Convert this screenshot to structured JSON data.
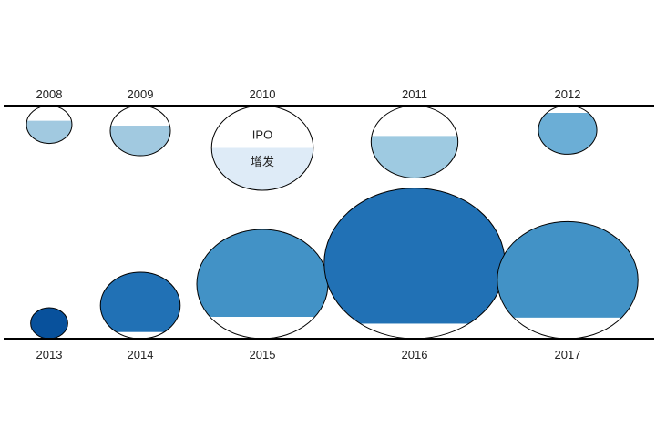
{
  "chart_data": {
    "type": "bubble",
    "title": "",
    "legend": {
      "top_label": "IPO",
      "bottom_label": "增发",
      "legend_year": "2010"
    },
    "rows": [
      {
        "items": [
          {
            "year": "2008",
            "size": 0.2,
            "fill_fraction": 0.6,
            "color": "#a1c9e0"
          },
          {
            "year": "2009",
            "size": 0.35,
            "fill_fraction": 0.6,
            "color": "#a1c9e0"
          },
          {
            "year": "2010",
            "size": 1.0,
            "fill_fraction": 0.0,
            "color": "#deebf7",
            "legend": true
          },
          {
            "year": "2011",
            "size": 0.73,
            "fill_fraction": 0.58,
            "color": "#9ecae1"
          },
          {
            "year": "2012",
            "size": 0.33,
            "fill_fraction": 0.85,
            "color": "#6baed6"
          }
        ]
      },
      {
        "items": [
          {
            "year": "2013",
            "size": 0.08,
            "fill_fraction": 1.0,
            "color": "#08519c"
          },
          {
            "year": "2014",
            "size": 0.37,
            "fill_fraction": 0.9,
            "color": "#2171b5"
          },
          {
            "year": "2015",
            "size": 1.0,
            "fill_fraction": 0.8,
            "color": "#4292c6"
          },
          {
            "year": "2016",
            "size": 1.9,
            "fill_fraction": 0.9,
            "color": "#2171b5"
          },
          {
            "year": "2017",
            "size": 1.15,
            "fill_fraction": 0.82,
            "color": "#4292c6"
          }
        ]
      }
    ]
  }
}
